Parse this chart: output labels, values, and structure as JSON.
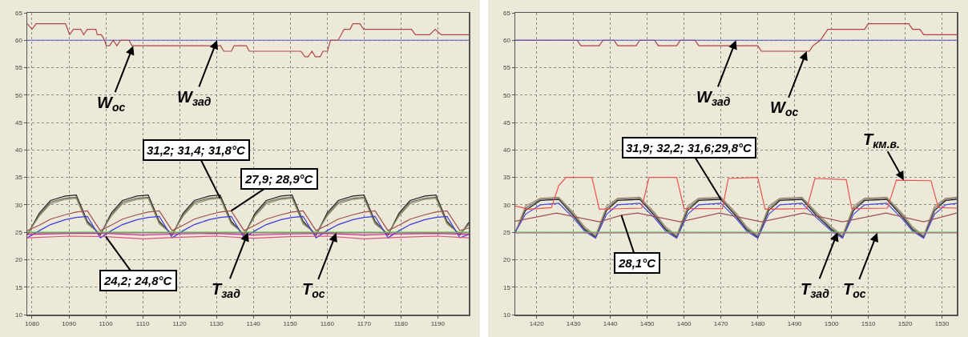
{
  "chart_data": [
    {
      "type": "line",
      "grid": true,
      "xlim": [
        1078.7,
        1198.4
      ],
      "ylim": [
        10,
        65
      ],
      "xticks": [
        1080,
        1090,
        1100,
        1110,
        1120,
        1130,
        1140,
        1150,
        1160,
        1170,
        1180,
        1190
      ],
      "yticks": [
        10,
        15,
        20,
        25,
        30,
        35,
        40,
        45,
        50,
        55,
        60,
        65
      ],
      "x": [
        1078.7,
        1082,
        1085,
        1089,
        1092,
        1095,
        1098.5,
        1101.5,
        1104.5,
        1108.5,
        1111.5,
        1114.5,
        1118,
        1121,
        1124,
        1128,
        1131,
        1134,
        1137.5,
        1140.5,
        1143.5,
        1147.5,
        1150.5,
        1153.5,
        1157,
        1160,
        1163,
        1167,
        1170,
        1173,
        1176.5,
        1179.5,
        1182.5,
        1186.5,
        1189.5,
        1192.5,
        1196,
        1198.4
      ],
      "series": [
        {
          "name": "W$_{ос}$",
          "color": "#b04848",
          "x": [
            1078.7,
            1080,
            1081.1,
            1089.1,
            1090.2,
            1091.2,
            1093.2,
            1094.0,
            1095.0,
            1097.3,
            1097.7,
            1098.8,
            1099.7,
            1100.1,
            1101.0,
            1102.0,
            1103.0,
            1104.0,
            1106.3,
            1107.1,
            1131.1,
            1132.0,
            1134.0,
            1134.8,
            1138.1,
            1138.9,
            1152.9,
            1154.0,
            1154.8,
            1155.9,
            1156.8,
            1158.1,
            1158.9,
            1160.1,
            1160.9,
            1163.0,
            1164.6,
            1166.2,
            1167.0,
            1168.9,
            1169.9,
            1182.9,
            1183.9,
            1187.8,
            1189.3,
            1190.9,
            1198.4
          ],
          "values": [
            63,
            62,
            63,
            63,
            61,
            62,
            62,
            61,
            62,
            62,
            61,
            61,
            60,
            59,
            59,
            60,
            59,
            60,
            60,
            59,
            59,
            58,
            58,
            59,
            59,
            58,
            58,
            57,
            57,
            58,
            57,
            57,
            58,
            58,
            60,
            60,
            62,
            62,
            63,
            63,
            62,
            62,
            61,
            61,
            62,
            61,
            61
          ]
        },
        {
          "name": "W$_{зад}$",
          "color": "#5a5ad0",
          "x": [
            1078.7,
            1198.4
          ],
          "values": [
            60,
            60
          ]
        },
        {
          "name": "T$_{зад}$",
          "color": "#30d030",
          "x": [
            1078.7,
            1198.4
          ],
          "values": [
            25,
            25
          ]
        },
        {
          "name": "T$_{ос}$",
          "color": "#f020c0",
          "x": [
            1078.7,
            1198.4
          ],
          "values": [
            24.9,
            24.9
          ]
        },
        {
          "color": "#202020",
          "values": [
            24.5,
            28.5,
            30.8,
            31.6,
            31.8,
            27.0,
            24.5,
            28.5,
            30.8,
            31.6,
            31.8,
            27.0,
            24.5,
            28.5,
            30.8,
            31.6,
            31.8,
            27.0,
            24.5,
            28.5,
            30.8,
            31.6,
            31.8,
            27.0,
            24.5,
            28.5,
            30.8,
            31.6,
            31.8,
            27.0,
            24.5,
            28.5,
            30.8,
            31.6,
            31.8,
            27.0,
            24.5,
            26.8
          ]
        },
        {
          "color": "#666666",
          "values": [
            24.6,
            28.2,
            30.5,
            31.2,
            31.4,
            26.8,
            24.6,
            28.2,
            30.5,
            31.2,
            31.4,
            26.8,
            24.6,
            28.2,
            30.5,
            31.2,
            31.4,
            26.8,
            24.6,
            28.2,
            30.5,
            31.2,
            31.4,
            26.8,
            24.6,
            28.2,
            30.5,
            31.2,
            31.4,
            26.8,
            24.6,
            28.2,
            30.5,
            31.2,
            31.4,
            26.8,
            24.6,
            26.6
          ]
        },
        {
          "color": "#8a8a5a",
          "values": [
            24.7,
            28.0,
            30.2,
            31.0,
            31.2,
            26.5,
            24.7,
            28.0,
            30.2,
            31.0,
            31.2,
            26.5,
            24.7,
            28.0,
            30.2,
            31.0,
            31.2,
            26.5,
            24.7,
            28.0,
            30.2,
            31.0,
            31.2,
            26.5,
            24.7,
            28.0,
            30.2,
            31.0,
            31.2,
            26.5,
            24.7,
            28.0,
            30.2,
            31.0,
            31.2,
            26.5,
            24.7,
            26.4
          ]
        },
        {
          "color": "#a05050",
          "values": [
            25.3,
            26.3,
            27.4,
            28.2,
            28.7,
            28.9,
            25.3,
            26.3,
            27.4,
            28.2,
            28.7,
            28.9,
            25.3,
            26.3,
            27.4,
            28.2,
            28.7,
            28.9,
            25.3,
            26.3,
            27.4,
            28.2,
            28.7,
            28.9,
            25.3,
            26.3,
            27.4,
            28.2,
            28.7,
            28.9,
            25.3,
            26.3,
            27.4,
            28.2,
            28.7,
            28.9,
            25.3,
            25.8
          ]
        },
        {
          "color": "#3a3ae0",
          "values": [
            24.0,
            25.3,
            26.4,
            27.3,
            27.7,
            27.9,
            24.0,
            25.3,
            26.4,
            27.3,
            27.7,
            27.9,
            24.0,
            25.3,
            26.4,
            27.3,
            27.7,
            27.9,
            24.0,
            25.3,
            26.4,
            27.3,
            27.7,
            27.9,
            24.0,
            25.3,
            26.4,
            27.3,
            27.7,
            27.9,
            24.0,
            25.3,
            26.4,
            27.3,
            27.7,
            27.9,
            24.0,
            24.6
          ]
        },
        {
          "color": "#e05080",
          "x": [
            1078.7,
            1090,
            1100,
            1110,
            1120,
            1130,
            1140,
            1150,
            1160,
            1170,
            1180,
            1190,
            1198.4
          ],
          "values": [
            24.0,
            24.3,
            24.2,
            23.8,
            24.1,
            24.3,
            23.9,
            24.2,
            24.3,
            23.8,
            24.1,
            24.3,
            24.0
          ]
        },
        {
          "color": "#c03090",
          "x": [
            1078.7,
            1090,
            1100,
            1110,
            1120,
            1130,
            1140,
            1150,
            1160,
            1170,
            1180,
            1190,
            1198.4
          ],
          "values": [
            24.6,
            24.8,
            24.8,
            24.5,
            24.7,
            24.8,
            24.5,
            24.7,
            24.8,
            24.5,
            24.7,
            24.8,
            24.6
          ]
        }
      ],
      "annotations": [
        {
          "text": "31,2; 31,4; 31,8°C",
          "x": 1131,
          "y": 31.2
        },
        {
          "text": "27,9; 28,9°C",
          "x": 1134,
          "y": 28.9
        },
        {
          "text": "24,2; 24,8°C",
          "x": 1100,
          "y": 24.2
        }
      ]
    },
    {
      "type": "line",
      "grid": true,
      "xlim": [
        1414.2,
        1534
      ],
      "ylim": [
        10,
        65
      ],
      "xticks": [
        1420,
        1430,
        1440,
        1450,
        1460,
        1470,
        1480,
        1490,
        1500,
        1510,
        1520,
        1530
      ],
      "yticks": [
        10,
        15,
        20,
        25,
        30,
        35,
        40,
        45,
        50,
        55,
        60,
        65
      ],
      "x": [
        1414.2,
        1417,
        1421,
        1426,
        1430,
        1433,
        1436,
        1439,
        1442,
        1448,
        1452,
        1455,
        1458,
        1461,
        1464,
        1470,
        1474,
        1477,
        1480,
        1483,
        1486,
        1492,
        1496,
        1500,
        1503,
        1506,
        1509,
        1515,
        1519,
        1522,
        1525,
        1528,
        1531,
        1534
      ],
      "series": [
        {
          "name": "W$_{зад}$",
          "color": "#5050d0",
          "x": [
            1414.2,
            1534
          ],
          "values": [
            60,
            60
          ]
        },
        {
          "name": "W$_{ос}$",
          "color": "#b04040",
          "x": [
            1414.2,
            1431,
            1432,
            1437,
            1438,
            1441,
            1442,
            1447,
            1448,
            1452,
            1453,
            1458,
            1459,
            1463,
            1464,
            1469,
            1470,
            1480,
            1481,
            1494,
            1495,
            1497,
            1499,
            1509,
            1510,
            1521,
            1522,
            1524,
            1525,
            1534
          ],
          "values": [
            60,
            60,
            59,
            59,
            60,
            60,
            59,
            59,
            60,
            60,
            59,
            59,
            60,
            60,
            59,
            59,
            59,
            59,
            58,
            58,
            59,
            60,
            62,
            62,
            63,
            63,
            62,
            62,
            61,
            61
          ]
        },
        {
          "name": "T$_{км.в.}$",
          "color": "#f05050",
          "x": [
            1414.2,
            1418,
            1424,
            1426,
            1428,
            1435,
            1437,
            1448.5,
            1450.5,
            1458,
            1460,
            1470.4,
            1472,
            1480,
            1482,
            1493.3,
            1495.5,
            1504,
            1505.5,
            1515.2,
            1517.6,
            1527,
            1529,
            1534
          ],
          "values": [
            29.8,
            29.2,
            29.5,
            33.5,
            35.0,
            35.0,
            29.2,
            29.4,
            35.0,
            35.0,
            29.3,
            29.3,
            34.8,
            35.0,
            29.2,
            29.3,
            34.8,
            34.6,
            29.3,
            29.4,
            34.5,
            34.4,
            29.5,
            29.4
          ]
        },
        {
          "name": "T$_{зад}$",
          "color": "#40d040",
          "x": [
            1414.2,
            1534
          ],
          "values": [
            25,
            25
          ]
        },
        {
          "name": "T$_{ос}$",
          "color": "#f020c0",
          "x": [
            1414.2,
            1534
          ],
          "values": [
            24.9,
            24.9
          ]
        },
        {
          "color": "#202020",
          "values": [
            25.0,
            29.0,
            30.8,
            31.0,
            28.0,
            25.5,
            24.1,
            29.0,
            30.8,
            31.0,
            28.0,
            25.5,
            24.1,
            29.0,
            30.8,
            31.0,
            28.0,
            25.5,
            24.1,
            29.0,
            30.8,
            31.0,
            28.0,
            25.5,
            24.1,
            29.0,
            30.8,
            31.0,
            28.0,
            25.5,
            24.1,
            29.0,
            30.8,
            31.0
          ]
        },
        {
          "color": "#707070",
          "values": [
            25.0,
            29.4,
            31.0,
            31.2,
            28.3,
            25.7,
            24.3,
            29.4,
            31.0,
            31.2,
            28.3,
            25.7,
            24.3,
            29.4,
            31.0,
            31.2,
            28.3,
            25.7,
            24.3,
            29.4,
            31.0,
            31.2,
            28.3,
            25.7,
            24.3,
            29.4,
            31.0,
            31.2,
            28.3,
            25.7,
            24.3,
            29.4,
            31.0,
            31.2
          ]
        },
        {
          "color": "#a09070",
          "values": [
            25.0,
            29.8,
            31.2,
            31.4,
            28.6,
            26.0,
            24.4,
            29.8,
            31.2,
            31.4,
            28.6,
            26.0,
            24.4,
            29.8,
            31.2,
            31.4,
            28.6,
            26.0,
            24.4,
            29.8,
            31.2,
            31.4,
            28.6,
            26.0,
            24.4,
            29.8,
            31.2,
            31.4,
            28.6,
            26.0,
            24.4,
            29.8,
            31.2,
            31.4
          ]
        },
        {
          "color": "#4848e0",
          "values": [
            25.0,
            28.3,
            30.0,
            30.3,
            27.6,
            25.2,
            23.9,
            28.3,
            30.0,
            30.3,
            27.6,
            25.2,
            23.9,
            28.3,
            30.0,
            30.3,
            27.6,
            25.2,
            23.9,
            28.3,
            30.0,
            30.3,
            27.6,
            25.2,
            23.9,
            28.3,
            30.0,
            30.3,
            27.6,
            25.2,
            23.9,
            28.3,
            30.0,
            30.3
          ]
        },
        {
          "color": "#a05050",
          "x": [
            1414.2,
            1425.4,
            1437,
            1443,
            1447.4,
            1459,
            1469.6,
            1481,
            1492.4,
            1503,
            1514.8,
            1525,
            1534
          ],
          "values": [
            27.0,
            28.5,
            26.9,
            28.1,
            28.5,
            26.9,
            28.5,
            26.9,
            28.5,
            26.9,
            28.5,
            26.9,
            28.5
          ]
        }
      ],
      "annotations": [
        {
          "text": "31,9; 32,2; 31,6;29,8°C",
          "x": 1470,
          "y": 31.0
        },
        {
          "text": "28,1°C",
          "x": 1443,
          "y": 28.1
        }
      ]
    }
  ]
}
